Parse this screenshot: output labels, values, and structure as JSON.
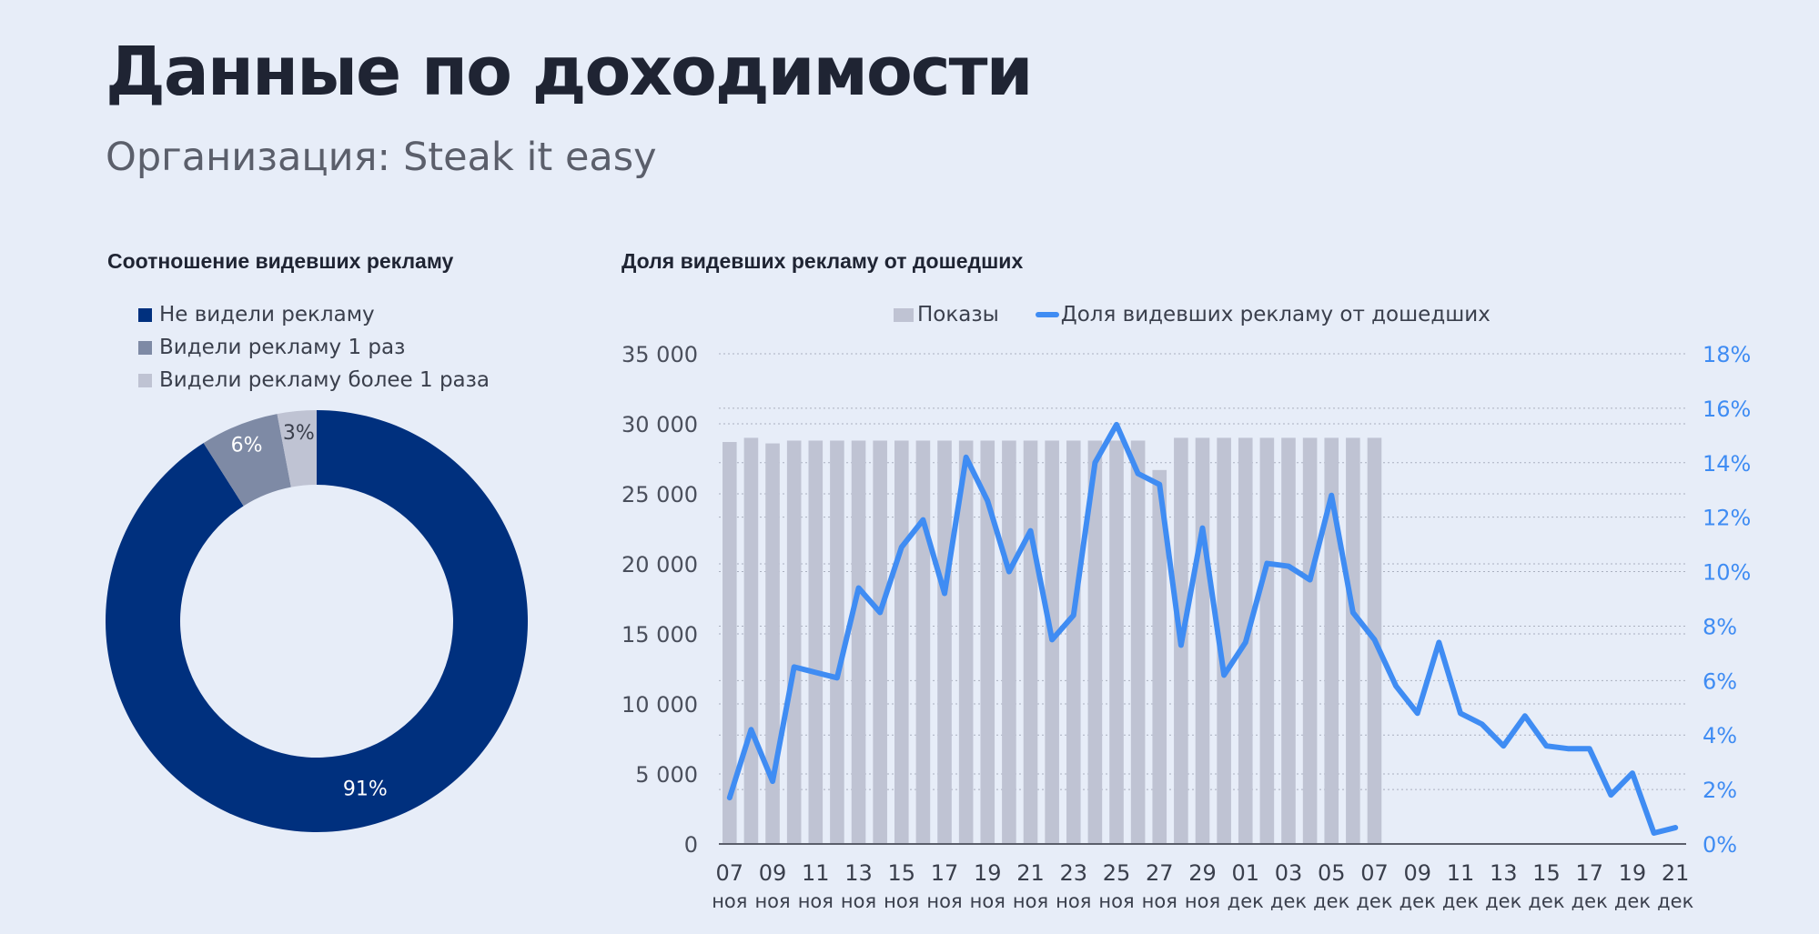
{
  "header": {
    "title": "Данные по доходимости",
    "org_label": "Организация:",
    "org_name": "Steak it easy"
  },
  "colors": {
    "background": "#e7edf8",
    "navy": "#00307e",
    "gray_mid": "#7e8aa5",
    "gray_light": "#bfc3d3",
    "blue_line": "#3f8cf3",
    "bar": "#bfc3d3"
  },
  "chart_data": [
    {
      "type": "pie",
      "title": "Соотношение видевших рекламу",
      "donut": true,
      "legend_position": "top-left",
      "slices": [
        {
          "label": "Не видели рекламу",
          "value": 91,
          "display": "91%",
          "color": "#00307e"
        },
        {
          "label": "Видели рекламу 1 раз",
          "value": 6,
          "display": "6%",
          "color": "#7e8aa5"
        },
        {
          "label": "Видели рекламу более 1 раза",
          "value": 3,
          "display": "3%",
          "color": "#bfc3d3"
        }
      ]
    },
    {
      "type": "bar",
      "title": "Доля видевших рекламу от дошедших",
      "legend_position": "top",
      "grid": true,
      "x": [
        "07 ноя",
        "08 ноя",
        "09 ноя",
        "10 ноя",
        "11 ноя",
        "12 ноя",
        "13 ноя",
        "14 ноя",
        "15 ноя",
        "16 ноя",
        "17 ноя",
        "18 ноя",
        "19 ноя",
        "20 ноя",
        "21 ноя",
        "22 ноя",
        "23 ноя",
        "24 ноя",
        "25 ноя",
        "26 ноя",
        "27 ноя",
        "28 ноя",
        "29 ноя",
        "30 ноя",
        "01 дек",
        "02 дек",
        "03 дек",
        "04 дек",
        "05 дек",
        "06 дек",
        "07 дек",
        "08 дек",
        "09 дек",
        "10 дек",
        "11 дек",
        "12 дек",
        "13 дек",
        "14 дек",
        "15 дек",
        "16 дек",
        "17 дек",
        "18 дек",
        "19 дек",
        "20 дек",
        "21 дек"
      ],
      "tick_labels": [
        {
          "day": "07",
          "month": "ноя"
        },
        {
          "day": "09",
          "month": "ноя"
        },
        {
          "day": "11",
          "month": "ноя"
        },
        {
          "day": "13",
          "month": "ноя"
        },
        {
          "day": "15",
          "month": "ноя"
        },
        {
          "day": "17",
          "month": "ноя"
        },
        {
          "day": "19",
          "month": "ноя"
        },
        {
          "day": "21",
          "month": "ноя"
        },
        {
          "day": "23",
          "month": "ноя"
        },
        {
          "day": "25",
          "month": "ноя"
        },
        {
          "day": "27",
          "month": "ноя"
        },
        {
          "day": "29",
          "month": "ноя"
        },
        {
          "day": "01",
          "month": "дек"
        },
        {
          "day": "03",
          "month": "дек"
        },
        {
          "day": "05",
          "month": "дек"
        },
        {
          "day": "07",
          "month": "дек"
        },
        {
          "day": "09",
          "month": "дек"
        },
        {
          "day": "11",
          "month": "дек"
        },
        {
          "day": "13",
          "month": "дек"
        },
        {
          "day": "15",
          "month": "дек"
        },
        {
          "day": "17",
          "month": "дек"
        },
        {
          "day": "19",
          "month": "дек"
        },
        {
          "day": "21",
          "month": "дек"
        }
      ],
      "y_left": {
        "ylim": [
          0,
          35000
        ],
        "ticks": [
          "0",
          "5 000",
          "10 000",
          "15 000",
          "20 000",
          "25 000",
          "30 000",
          "35 000"
        ]
      },
      "y_right": {
        "ylim": [
          0,
          18
        ],
        "ticks": [
          "0%",
          "2%",
          "4%",
          "6%",
          "8%",
          "10%",
          "12%",
          "14%",
          "16%",
          "18%"
        ]
      },
      "series": [
        {
          "name": "Показы",
          "kind": "bar",
          "axis": "left",
          "values": [
            28700,
            29000,
            28600,
            28800,
            28800,
            28800,
            28800,
            28800,
            28800,
            28800,
            28800,
            28800,
            28800,
            28800,
            28800,
            28800,
            28800,
            28800,
            28800,
            28800,
            26700,
            29000,
            29000,
            29000,
            29000,
            29000,
            29000,
            29000,
            29000,
            29000,
            29000,
            null,
            null,
            null,
            null,
            null,
            null,
            null,
            null,
            null,
            null,
            null,
            null,
            null,
            null
          ]
        },
        {
          "name": "Доля видевших рекламу от дошедших",
          "kind": "line",
          "axis": "right",
          "values": [
            1.7,
            4.2,
            2.3,
            6.5,
            6.3,
            6.1,
            9.4,
            8.5,
            10.9,
            11.9,
            9.2,
            14.2,
            12.6,
            10.0,
            11.5,
            7.5,
            8.4,
            14.0,
            15.4,
            13.6,
            13.2,
            7.3,
            11.6,
            6.2,
            7.4,
            10.3,
            10.2,
            9.7,
            12.8,
            8.5,
            7.5,
            5.8,
            4.8,
            7.4,
            4.8,
            4.4,
            3.6,
            4.7,
            3.6,
            3.5,
            3.5,
            1.8,
            2.6,
            0.4,
            0.6
          ]
        }
      ]
    }
  ]
}
